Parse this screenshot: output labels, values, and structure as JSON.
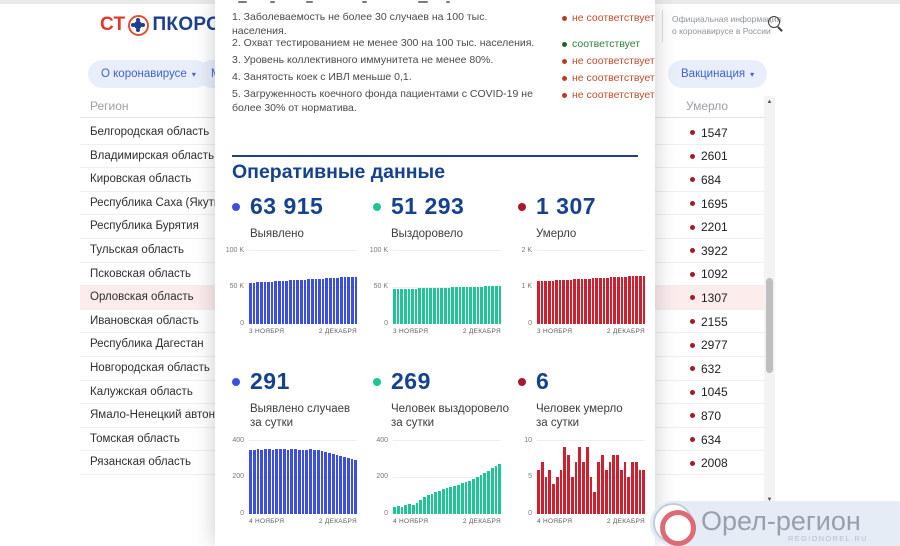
{
  "page": {
    "header": {
      "logo_prefix": "СТ",
      "logo_suffix": "ПКОРОНАВИ",
      "official_info_line1": "Официальная информация",
      "official_info_line2": "о коронавирусе в России"
    },
    "nav": {
      "about_label": "О коронавирусе",
      "partial_label": "М",
      "vaccination_label": "Вакцинация",
      "caret": "▾"
    },
    "table": {
      "region_header": "Регион",
      "deaths_header": "Умерло",
      "rows": [
        {
          "region": "Белгородская область",
          "deaths": "1547",
          "highlight": false
        },
        {
          "region": "Владимирская область",
          "deaths": "2601",
          "highlight": false
        },
        {
          "region": "Кировская область",
          "deaths": "684",
          "highlight": false
        },
        {
          "region": "Республика Саха (Якутия)",
          "deaths": "1695",
          "highlight": false
        },
        {
          "region": "Республика Бурятия",
          "deaths": "2201",
          "highlight": false
        },
        {
          "region": "Тульская область",
          "deaths": "3922",
          "highlight": false
        },
        {
          "region": "Псковская область",
          "deaths": "1092",
          "highlight": false
        },
        {
          "region": "Орловская область",
          "deaths": "1307",
          "highlight": true
        },
        {
          "region": "Ивановская область",
          "deaths": "2155",
          "highlight": false
        },
        {
          "region": "Республика Дагестан",
          "deaths": "2977",
          "highlight": false
        },
        {
          "region": "Новгородская область",
          "deaths": "632",
          "highlight": false
        },
        {
          "region": "Калужская область",
          "deaths": "1045",
          "highlight": false
        },
        {
          "region": "Ямало-Ненецкий автоном",
          "deaths": "870",
          "highlight": false
        },
        {
          "region": "Томская область",
          "deaths": "634",
          "highlight": false
        },
        {
          "region": "Рязанская область",
          "deaths": "2008",
          "highlight": false
        }
      ],
      "scroll_up_glyph": "▲",
      "scroll_down_glyph": "▼"
    },
    "watermark": {
      "title": "Орел-регион",
      "subtitle": "REGIONOREL.RU"
    }
  },
  "modal": {
    "criteria": [
      {
        "num": "1.",
        "text": "Заболеваемость не более 30 случаев на 100 тыс. населения.",
        "status": "не соответствует",
        "ok": false
      },
      {
        "num": "2.",
        "text": "Охват тестированием не менее 300 на 100 тыс. населения.",
        "status": "соответствует",
        "ok": true
      },
      {
        "num": "3.",
        "text": "Уровень коллективного иммунитета не менее 80%.",
        "status": "не соответствует",
        "ok": false
      },
      {
        "num": "4.",
        "text": "Занятость коек с ИВЛ меньше 0,1.",
        "status": "не соответствует",
        "ok": false
      },
      {
        "num": "5.",
        "text": "Загруженность коечного фонда пациентами с COVID-19 не более 30% от норматива.",
        "status": "не соответствует",
        "ok": false
      }
    ],
    "title": "Оперативные данные",
    "stats_total": [
      {
        "value": "63 915",
        "label1": "Выявлено",
        "label2": "",
        "color": "#3d4fe1"
      },
      {
        "value": "51 293",
        "label1": "Выздоровело",
        "label2": "",
        "color": "#1fc596"
      },
      {
        "value": "1 307",
        "label1": "Умерло",
        "label2": "",
        "color": "#a8182a"
      }
    ],
    "stats_daily": [
      {
        "value": "291",
        "label1": "Выявлено случаев",
        "label2": "за сутки",
        "color": "#3d4fe1"
      },
      {
        "value": "269",
        "label1": "Человек выздоровело",
        "label2": "за сутки",
        "color": "#1fc596"
      },
      {
        "value": "6",
        "label1": "Человек умерло",
        "label2": "за сутки",
        "color": "#a8182a"
      }
    ]
  },
  "chart_data": [
    {
      "type": "bar",
      "name": "cumulative-confirmed",
      "color": "#3d4fe1",
      "x_start": "3 НОЯБРЯ",
      "x_end": "2 ДЕКАБРЯ",
      "ylim": [
        0,
        100000
      ],
      "yticks": [
        "100 K",
        "50 K",
        "0"
      ],
      "values": [
        55600,
        55890,
        56180,
        56470,
        56760,
        57050,
        57340,
        57630,
        57920,
        58210,
        58500,
        58790,
        59080,
        59370,
        59660,
        59950,
        60240,
        60530,
        60820,
        61110,
        61400,
        61690,
        61980,
        62270,
        62560,
        62850,
        63140,
        63430,
        63720,
        63915
      ]
    },
    {
      "type": "bar",
      "name": "cumulative-recovered",
      "color": "#1fc596",
      "x_start": "3 НОЯБРЯ",
      "x_end": "2 ДЕКАБРЯ",
      "ylim": [
        0,
        100000
      ],
      "yticks": [
        "100 K",
        "50 K",
        "0"
      ],
      "values": [
        47000,
        47150,
        47300,
        47450,
        47600,
        47750,
        47900,
        48050,
        48200,
        48350,
        48500,
        48650,
        48800,
        48950,
        49100,
        49250,
        49400,
        49550,
        49700,
        49850,
        50000,
        50150,
        50300,
        50450,
        50600,
        50750,
        50900,
        51050,
        51180,
        51293
      ]
    },
    {
      "type": "bar",
      "name": "cumulative-deaths",
      "color": "#d01f2f",
      "x_start": "3 НОЯБРЯ",
      "x_end": "2 ДЕКАБРЯ",
      "ylim": [
        0,
        2000
      ],
      "yticks": [
        "2 K",
        "1 K",
        "0"
      ],
      "values": [
        1150,
        1156,
        1161,
        1167,
        1172,
        1178,
        1183,
        1189,
        1194,
        1200,
        1205,
        1211,
        1216,
        1222,
        1227,
        1233,
        1238,
        1244,
        1249,
        1255,
        1260,
        1266,
        1271,
        1277,
        1282,
        1288,
        1293,
        1297,
        1302,
        1307
      ]
    },
    {
      "type": "bar",
      "name": "daily-confirmed",
      "color": "#3d4fe1",
      "x_start": "4 НОЯБРЯ",
      "x_end": "2 ДЕКАБРЯ",
      "ylim": [
        0,
        400
      ],
      "yticks": [
        "400",
        "200",
        "0"
      ],
      "values": [
        345,
        348,
        350,
        347,
        352,
        350,
        348,
        351,
        353,
        350,
        347,
        349,
        351,
        348,
        345,
        347,
        350,
        348,
        344,
        340,
        336,
        331,
        326,
        319,
        313,
        306,
        300,
        295,
        291
      ]
    },
    {
      "type": "bar",
      "name": "daily-recovered",
      "color": "#1fc596",
      "x_start": "4 НОЯБРЯ",
      "x_end": "2 ДЕКАБРЯ",
      "ylim": [
        0,
        400
      ],
      "yticks": [
        "400",
        "200",
        "0"
      ],
      "values": [
        38,
        42,
        40,
        46,
        55,
        50,
        62,
        76,
        90,
        101,
        110,
        118,
        126,
        133,
        139,
        146,
        152,
        159,
        166,
        173,
        181,
        190,
        200,
        211,
        221,
        233,
        246,
        258,
        269
      ]
    },
    {
      "type": "bar",
      "name": "daily-deaths",
      "color": "#d01f2f",
      "x_start": "4 НОЯБРЯ",
      "x_end": "2 ДЕКАБРЯ",
      "ylim": [
        0,
        10
      ],
      "yticks": [
        "10",
        "5",
        "0"
      ],
      "values": [
        6,
        7,
        5,
        6,
        4,
        5,
        6,
        9,
        8,
        5,
        7,
        9,
        7,
        9,
        5,
        3,
        7,
        8,
        6,
        7,
        8,
        8,
        6,
        7,
        5,
        7,
        7,
        6,
        6
      ]
    }
  ]
}
